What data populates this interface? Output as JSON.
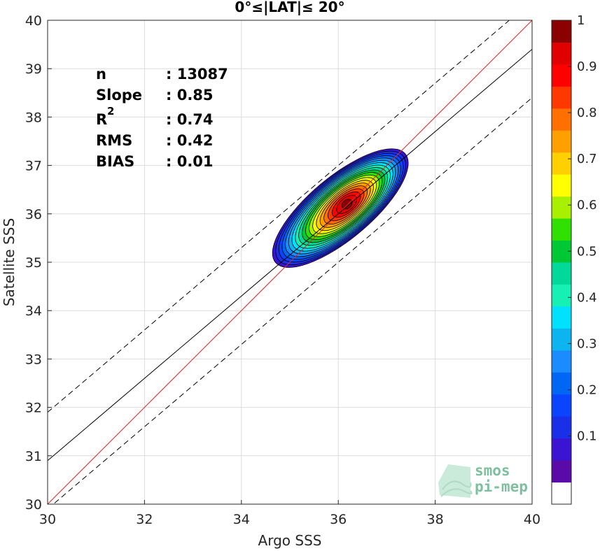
{
  "chart_data": {
    "type": "density-scatter",
    "title": "0°≤|LAT|≤ 20°",
    "xlabel": "Argo SSS",
    "ylabel": "Satellite SSS",
    "xlim": [
      30,
      40
    ],
    "ylim": [
      30,
      40
    ],
    "xticks": [
      "30",
      "32",
      "34",
      "36",
      "38",
      "40"
    ],
    "yticks": [
      "30",
      "31",
      "32",
      "33",
      "34",
      "35",
      "36",
      "37",
      "38",
      "39",
      "40"
    ],
    "grid": true,
    "stats": [
      {
        "label": "n",
        "value": ": 13087"
      },
      {
        "label": "Slope",
        "value": ": 0.85"
      },
      {
        "label": "R",
        "sup": "2",
        "value": ": 0.74"
      },
      {
        "label": "RMS",
        "value": ": 0.42"
      },
      {
        "label": "BIAS",
        "value": ": 0.01"
      }
    ],
    "lines": [
      {
        "role": "identity",
        "color": "#e8241c",
        "style": "solid",
        "x": [
          30,
          40
        ],
        "y": [
          30,
          40
        ]
      },
      {
        "role": "regression fit",
        "color": "#000000",
        "style": "solid",
        "x": [
          30,
          40
        ],
        "y": [
          30.9,
          39.4
        ]
      },
      {
        "role": "upper bound",
        "color": "#000000",
        "style": "dashed",
        "x": [
          30,
          40
        ],
        "y": [
          31.9,
          40.4
        ]
      },
      {
        "role": "lower bound",
        "color": "#000000",
        "style": "dashed",
        "x": [
          30,
          40
        ],
        "y": [
          29.9,
          38.4
        ]
      }
    ],
    "density": {
      "center": [
        36.18,
        36.2
      ],
      "levels": [
        0.05,
        0.1,
        0.15,
        0.2,
        0.25,
        0.3,
        0.35,
        0.4,
        0.45,
        0.5,
        0.55,
        0.6,
        0.65,
        0.7,
        0.75,
        0.8,
        0.85,
        0.9,
        0.95,
        1.0
      ]
    },
    "colorbar": {
      "range": [
        0,
        1
      ],
      "ticks": [
        "0.1",
        "0.2",
        "0.3",
        "0.4",
        "0.5",
        "0.6",
        "0.7",
        "0.8",
        "0.9",
        "1"
      ],
      "colors": [
        "#ffffff",
        "#5a0aa8",
        "#3a14d2",
        "#1a2fe8",
        "#0a44ff",
        "#0066f5",
        "#1a8cff",
        "#0cb4f0",
        "#00e0ff",
        "#17f0b4",
        "#00d99a",
        "#00c834",
        "#2fe000",
        "#a8f000",
        "#ffff00",
        "#ffd000",
        "#ffa000",
        "#ff7000",
        "#ff3800",
        "#ff0000",
        "#e00000",
        "#8b0000"
      ]
    }
  },
  "watermark": {
    "line1": "smos",
    "line2": "pi-mep"
  }
}
